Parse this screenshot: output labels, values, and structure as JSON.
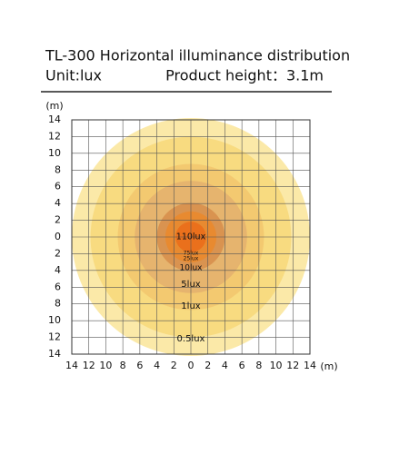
{
  "chart_data": {
    "type": "rings",
    "title": "TL-300 Horizontal illuminance distribution",
    "unit_label": "Unit:lux",
    "height_label": "Product height：3.1m",
    "x_unit": "(m)",
    "y_unit": "(m)",
    "xlim": [
      -14,
      14
    ],
    "ylim": [
      -14,
      14
    ],
    "xticks": [
      {
        "value": -14,
        "label": "14"
      },
      {
        "value": -12,
        "label": "12"
      },
      {
        "value": -10,
        "label": "10"
      },
      {
        "value": -8,
        "label": "8"
      },
      {
        "value": -6,
        "label": "6"
      },
      {
        "value": -4,
        "label": "4"
      },
      {
        "value": -2,
        "label": "2"
      },
      0,
      2,
      4,
      6,
      8,
      10,
      12,
      14
    ],
    "yticks": [
      {
        "value": -14,
        "label": "14"
      },
      {
        "value": -12,
        "label": "12"
      },
      {
        "value": -10,
        "label": "10"
      },
      {
        "value": -8,
        "label": "8"
      },
      {
        "value": -6,
        "label": "6"
      },
      {
        "value": -4,
        "label": "4"
      },
      {
        "value": -2,
        "label": "2"
      },
      0,
      2,
      4,
      6,
      8,
      10,
      12,
      14
    ],
    "grid": true,
    "rings": [
      {
        "label": "0.5lux",
        "radius": 14,
        "color": "#fbe9a8"
      },
      {
        "label": "1lux",
        "radius": 11.8,
        "color": "#f8db80"
      },
      {
        "label": "5lux",
        "radius": 8.6,
        "color": "#f3c970"
      },
      {
        "label": "10lux",
        "radius": 6.6,
        "color": "#e6b46e"
      },
      {
        "label": "25lux",
        "radius": 4,
        "color": "#d99350"
      },
      {
        "label": "75lux",
        "radius": 3,
        "color": "#e88a30"
      },
      {
        "label": "110lux",
        "radius": 1.8,
        "color": "#ea701c"
      }
    ]
  }
}
